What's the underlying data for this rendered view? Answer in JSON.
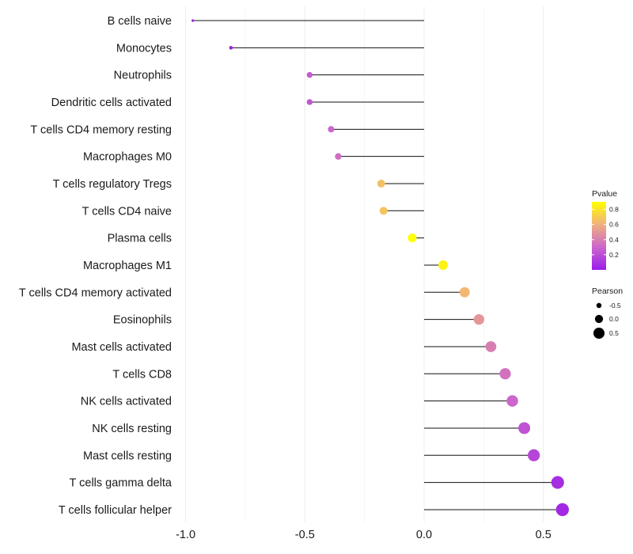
{
  "chart_data": {
    "type": "lollipop",
    "title": "",
    "xlabel": "",
    "ylabel": "",
    "xlim": [
      -1.0,
      0.7
    ],
    "xticks": [
      -1.0,
      -0.5,
      0.0,
      0.5
    ],
    "xtick_labels": [
      "-1.0",
      "-0.5",
      "0.0",
      "0.5"
    ],
    "grid": "vertical",
    "categories": [
      "B cells naive",
      "Monocytes",
      "Neutrophils",
      "Dendritic cells activated",
      "T cells CD4 memory resting",
      "Macrophages M0",
      "T cells regulatory  Tregs",
      "T cells CD4 naive",
      "Plasma cells",
      "Macrophages M1",
      "T cells CD4 memory activated",
      "Eosinophils",
      "Mast cells activated",
      "T cells CD8",
      "NK cells activated",
      "NK cells resting",
      "Mast cells resting",
      "T cells gamma delta",
      "T cells follicular helper"
    ],
    "pearson": [
      -0.97,
      -0.81,
      -0.48,
      -0.48,
      -0.39,
      -0.36,
      -0.18,
      -0.17,
      -0.05,
      0.08,
      0.17,
      0.23,
      0.28,
      0.34,
      0.37,
      0.42,
      0.46,
      0.56,
      0.58
    ],
    "pvalue": [
      0.01,
      0.03,
      0.25,
      0.24,
      0.3,
      0.33,
      0.66,
      0.68,
      0.9,
      0.85,
      0.63,
      0.5,
      0.4,
      0.35,
      0.3,
      0.22,
      0.17,
      0.07,
      0.05
    ],
    "legend": {
      "color": {
        "title": "Pvalue",
        "ticks": [
          0.8,
          0.6,
          0.4,
          0.2
        ],
        "tick_labels": [
          "0.8",
          "0.6",
          "0.4",
          "0.2"
        ],
        "range": [
          0.0,
          0.9
        ],
        "colors": [
          "#9a1de8",
          "#cc66cc",
          "#f0b07e",
          "#ffff00"
        ]
      },
      "size": {
        "title": "Pearson",
        "values": [
          -0.5,
          0.0,
          0.5
        ],
        "labels": [
          "-0.5",
          "0.0",
          "0.5"
        ]
      },
      "position": "right"
    }
  }
}
